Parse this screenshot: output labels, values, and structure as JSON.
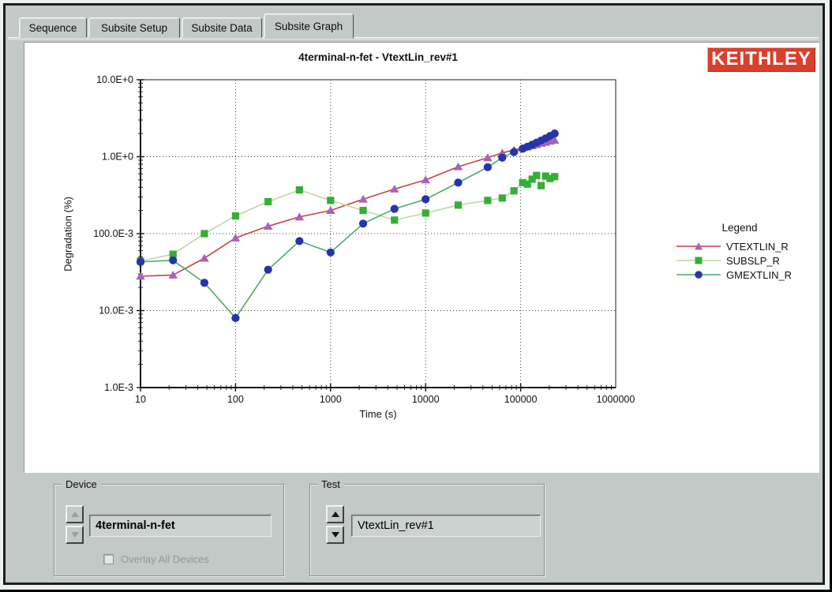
{
  "tabs": {
    "items": [
      {
        "label": "Sequence"
      },
      {
        "label": "Subsite Setup"
      },
      {
        "label": "Subsite Data"
      },
      {
        "label": "Subsite Graph"
      }
    ],
    "active_index": 3
  },
  "logo": {
    "text": "KEITHLEY",
    "bg": "#d8402c",
    "fg": "#ffffff"
  },
  "chart_data": {
    "type": "line",
    "title": "4terminal-n-fet - VtextLin_rev#1",
    "xlabel": "Time (s)",
    "ylabel": "Degradation (%)",
    "x_scale": "log",
    "y_scale": "log",
    "xlim": [
      10,
      1000000
    ],
    "ylim": [
      0.001,
      10
    ],
    "grid": "dotted",
    "legend_position": "right",
    "legend_title": "Legend",
    "x_ticks": {
      "values": [
        10,
        100,
        1000,
        10000,
        100000,
        1000000
      ],
      "labels": [
        "10",
        "100",
        "1000",
        "10000",
        "100000",
        "1000000"
      ]
    },
    "y_ticks": {
      "values": [
        10,
        1,
        0.1,
        0.01,
        0.001
      ],
      "labels": [
        "10.0E+0",
        "1.0E+0",
        "100.0E-3",
        "10.0E-3",
        "1.0E-3"
      ]
    },
    "x": [
      10,
      22,
      47,
      100,
      220,
      470,
      1000,
      2200,
      4700,
      10000,
      22000,
      45000,
      64000,
      85000,
      105000,
      118000,
      132000,
      147000,
      164000,
      183000,
      204000,
      228000
    ],
    "series": [
      {
        "name": "VTEXTLIN_R",
        "line_color": "#cc4040",
        "marker": "triangle",
        "marker_color": "#a862b8",
        "values": [
          0.028,
          0.029,
          0.048,
          0.088,
          0.125,
          0.165,
          0.2,
          0.28,
          0.38,
          0.5,
          0.74,
          0.97,
          1.12,
          1.22,
          1.3,
          1.34,
          1.39,
          1.44,
          1.49,
          1.54,
          1.59,
          1.64
        ]
      },
      {
        "name": "SUBSLP_R",
        "line_color": "#bcd9a2",
        "marker": "square",
        "marker_color": "#36ae36",
        "values": [
          0.044,
          0.054,
          0.1,
          0.17,
          0.26,
          0.37,
          0.27,
          0.2,
          0.15,
          0.185,
          0.235,
          0.27,
          0.29,
          0.36,
          0.46,
          0.44,
          0.51,
          0.57,
          0.42,
          0.56,
          0.52,
          0.55
        ]
      },
      {
        "name": "GMEXTLIN_R",
        "line_color": "#4aa968",
        "marker": "circle",
        "marker_color": "#2534a8",
        "values": [
          0.043,
          0.045,
          0.023,
          0.008,
          0.034,
          0.08,
          0.057,
          0.135,
          0.21,
          0.28,
          0.46,
          0.73,
          0.97,
          1.15,
          1.27,
          1.35,
          1.43,
          1.52,
          1.62,
          1.73,
          1.86,
          2.0
        ]
      }
    ]
  },
  "device_panel": {
    "label": "Device",
    "value": "4terminal-n-fet",
    "checkbox_label": "Overlay All Devices",
    "checkbox_checked": false
  },
  "test_panel": {
    "label": "Test",
    "value": "VtextLin_rev#1"
  }
}
